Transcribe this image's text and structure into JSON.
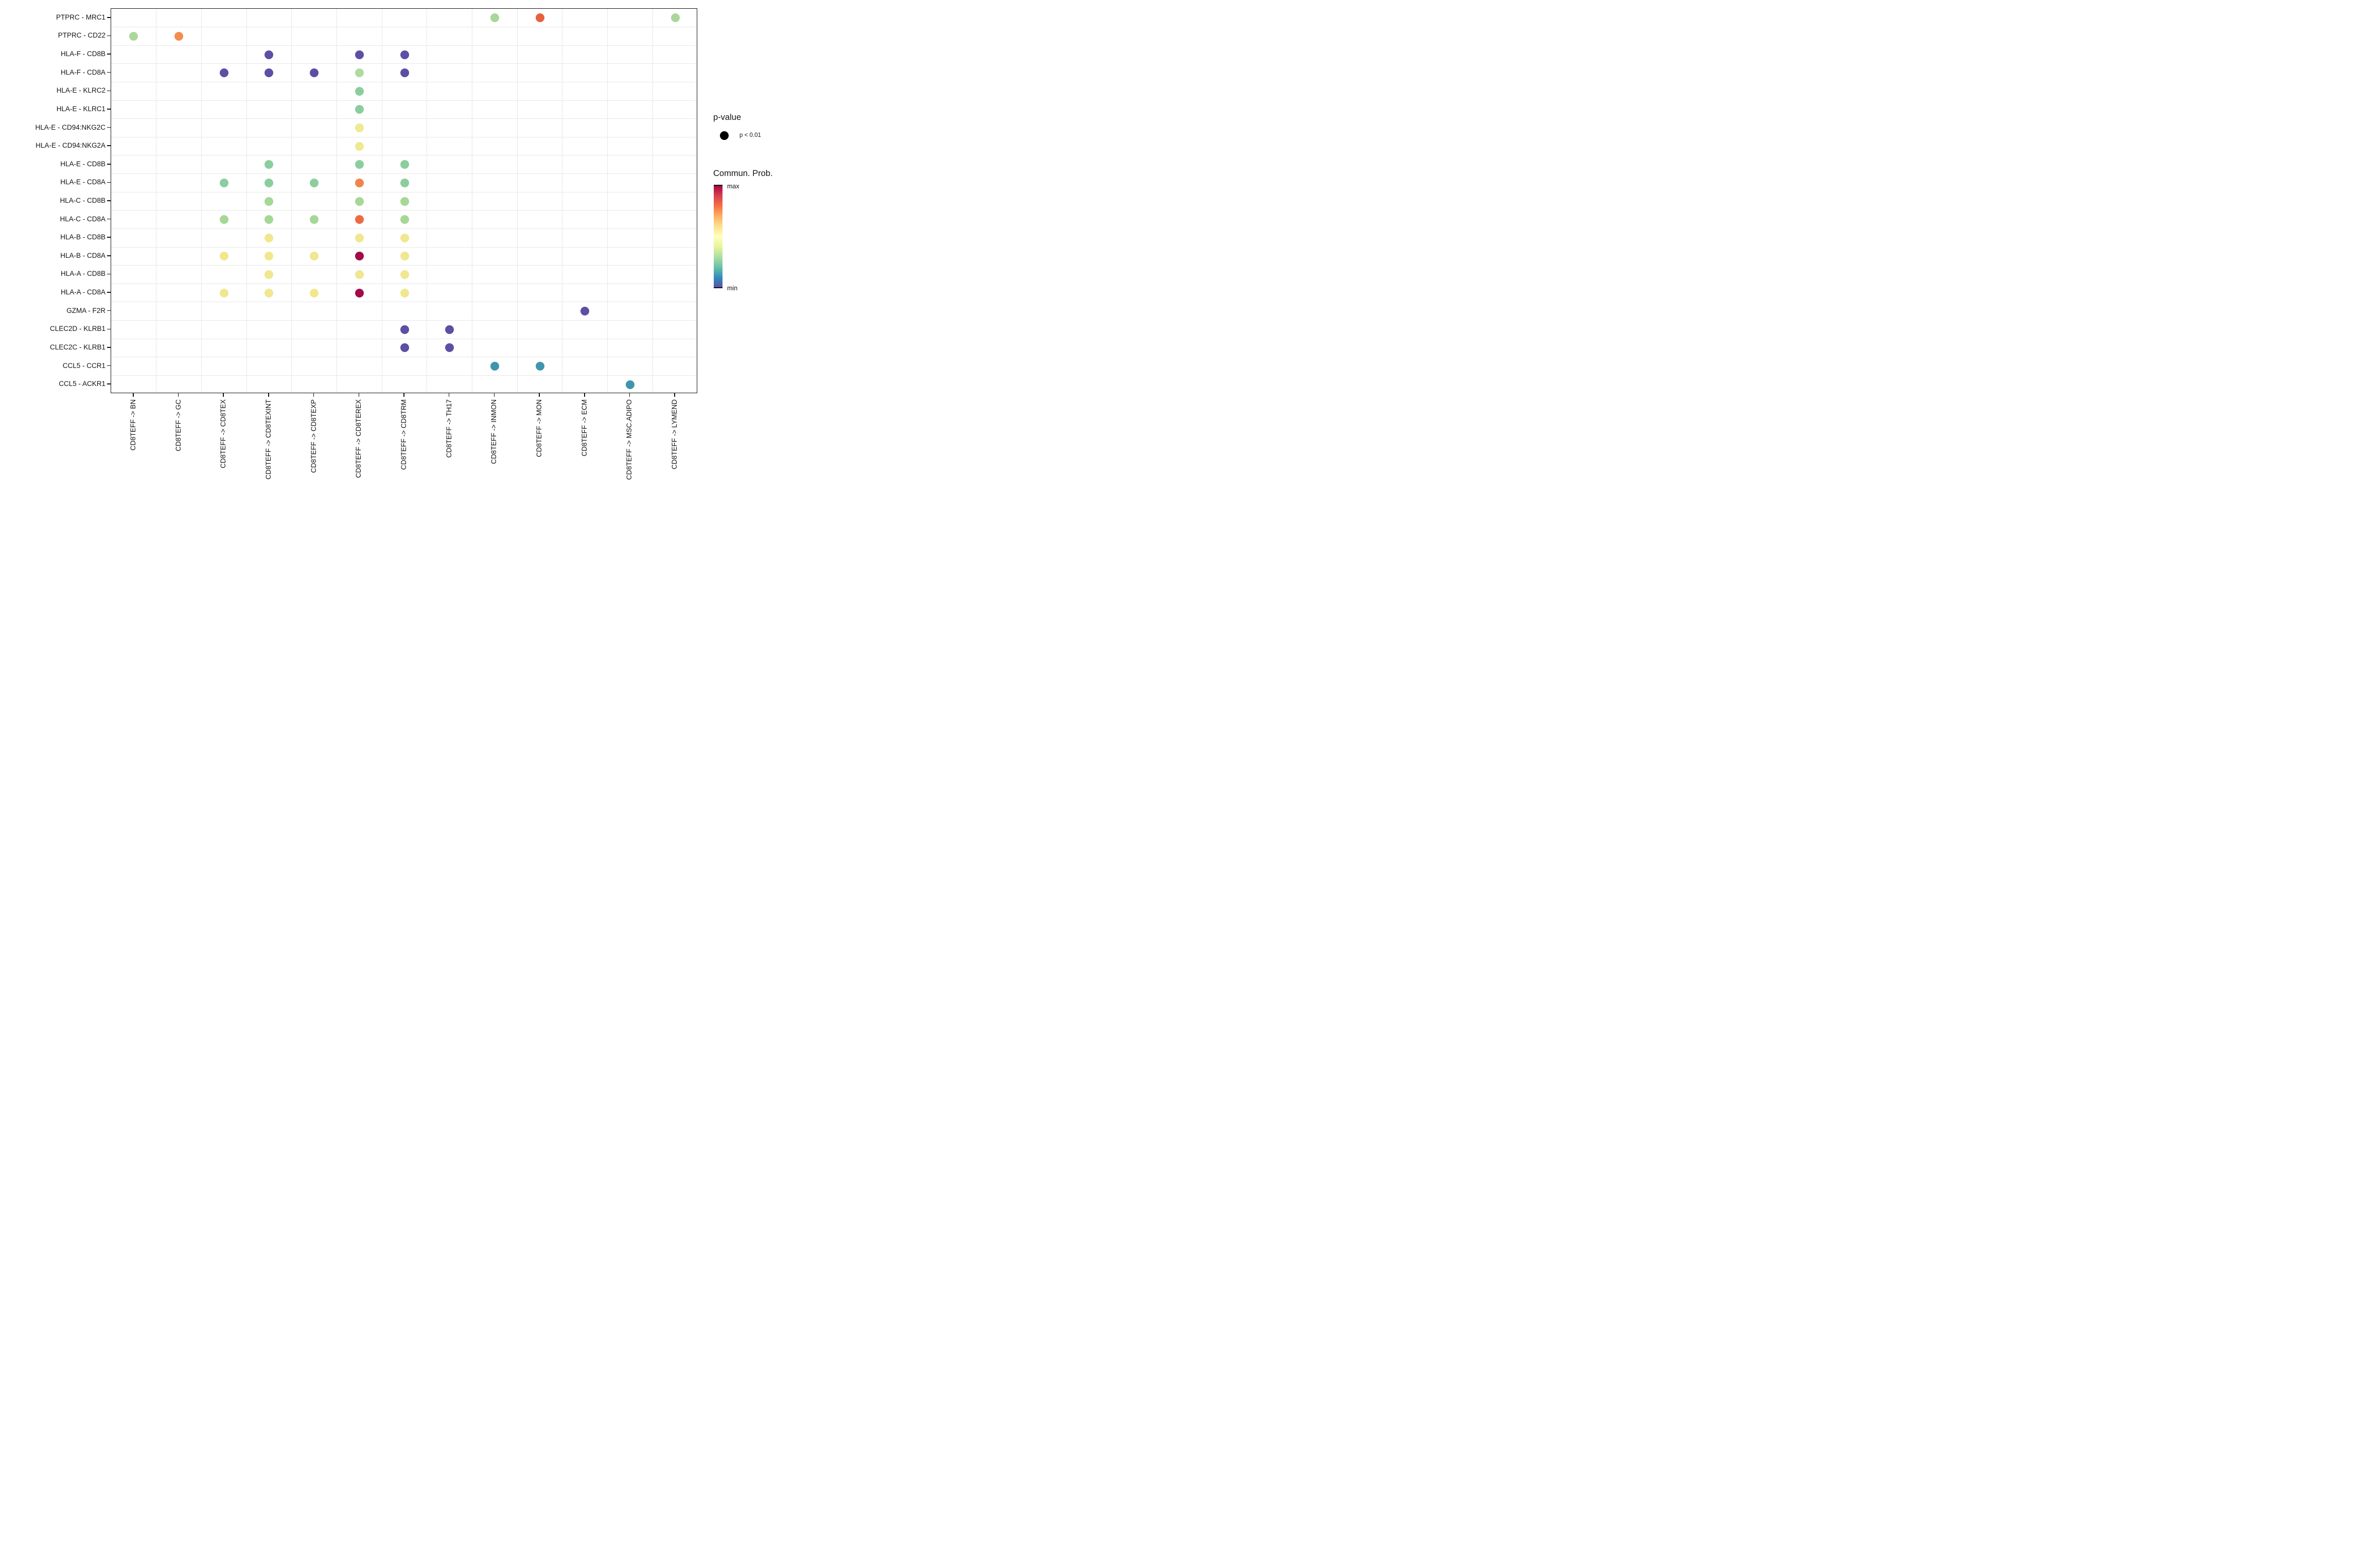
{
  "chart_data": {
    "type": "scatter",
    "title": "",
    "xlabel": "",
    "ylabel": "",
    "grid": "on",
    "legend_position": "right",
    "x_categories": [
      "CD8TEFF -> BN",
      "CD8TEFF -> GC",
      "CD8TEFF -> CD8TEX",
      "CD8TEFF -> CD8TEXINT",
      "CD8TEFF -> CD8TEXP",
      "CD8TEFF -> CD8TEREX",
      "CD8TEFF -> CD8TRM",
      "CD8TEFF -> TH17",
      "CD8TEFF -> INMON",
      "CD8TEFF -> MON",
      "CD8TEFF -> ECM",
      "CD8TEFF -> MSC.ADIPO",
      "CD8TEFF -> LYMEND"
    ],
    "y_categories": [
      "PTPRC - MRC1",
      "PTPRC - CD22",
      "HLA-F - CD8B",
      "HLA-F - CD8A",
      "HLA-E - KLRC2",
      "HLA-E - KLRC1",
      "HLA-E - CD94:NKG2C",
      "HLA-E - CD94:NKG2A",
      "HLA-E - CD8B",
      "HLA-E - CD8A",
      "HLA-C - CD8B",
      "HLA-C - CD8A",
      "HLA-B - CD8B",
      "HLA-B - CD8A",
      "HLA-A - CD8B",
      "HLA-A - CD8A",
      "GZMA - F2R",
      "CLEC2D - KLRB1",
      "CLEC2C - KLRB1",
      "CCL5 - CCR1",
      "CCL5 - ACKR1"
    ],
    "points": [
      {
        "y": "PTPRC - MRC1",
        "x": "CD8TEFF -> INMON",
        "color": "#a9d79a"
      },
      {
        "y": "PTPRC - MRC1",
        "x": "CD8TEFF -> MON",
        "color": "#e8613d"
      },
      {
        "y": "PTPRC - MRC1",
        "x": "CD8TEFF -> LYMEND",
        "color": "#a9d79a"
      },
      {
        "y": "PTPRC - CD22",
        "x": "CD8TEFF -> BN",
        "color": "#abd89a"
      },
      {
        "y": "PTPRC - CD22",
        "x": "CD8TEFF -> GC",
        "color": "#f48c4e"
      },
      {
        "y": "HLA-F - CD8B",
        "x": "CD8TEFF -> CD8TEXINT",
        "color": "#5b50a4"
      },
      {
        "y": "HLA-F - CD8B",
        "x": "CD8TEFF -> CD8TEREX",
        "color": "#5b50a4"
      },
      {
        "y": "HLA-F - CD8B",
        "x": "CD8TEFF -> CD8TRM",
        "color": "#5b50a4"
      },
      {
        "y": "HLA-F - CD8A",
        "x": "CD8TEFF -> CD8TEX",
        "color": "#5b50a4"
      },
      {
        "y": "HLA-F - CD8A",
        "x": "CD8TEFF -> CD8TEXINT",
        "color": "#5b50a4"
      },
      {
        "y": "HLA-F - CD8A",
        "x": "CD8TEFF -> CD8TEXP",
        "color": "#5b50a4"
      },
      {
        "y": "HLA-F - CD8A",
        "x": "CD8TEFF -> CD8TEREX",
        "color": "#aedc9e"
      },
      {
        "y": "HLA-F - CD8A",
        "x": "CD8TEFF -> CD8TRM",
        "color": "#5b50a4"
      },
      {
        "y": "HLA-E - KLRC2",
        "x": "CD8TEFF -> CD8TEREX",
        "color": "#8bce9e"
      },
      {
        "y": "HLA-E - KLRC1",
        "x": "CD8TEFF -> CD8TEREX",
        "color": "#8bce9e"
      },
      {
        "y": "HLA-E - CD94:NKG2C",
        "x": "CD8TEFF -> CD8TEREX",
        "color": "#efe992"
      },
      {
        "y": "HLA-E - CD94:NKG2A",
        "x": "CD8TEFF -> CD8TEREX",
        "color": "#efe992"
      },
      {
        "y": "HLA-E - CD8B",
        "x": "CD8TEFF -> CD8TEXINT",
        "color": "#8bce9e"
      },
      {
        "y": "HLA-E - CD8B",
        "x": "CD8TEFF -> CD8TEREX",
        "color": "#8bce9e"
      },
      {
        "y": "HLA-E - CD8B",
        "x": "CD8TEFF -> CD8TRM",
        "color": "#8bce9e"
      },
      {
        "y": "HLA-E - CD8A",
        "x": "CD8TEFF -> CD8TEX",
        "color": "#8bce9e"
      },
      {
        "y": "HLA-E - CD8A",
        "x": "CD8TEFF -> CD8TEXINT",
        "color": "#8bce9e"
      },
      {
        "y": "HLA-E - CD8A",
        "x": "CD8TEFF -> CD8TEXP",
        "color": "#8bce9e"
      },
      {
        "y": "HLA-E - CD8A",
        "x": "CD8TEFF -> CD8TEREX",
        "color": "#f1844b"
      },
      {
        "y": "HLA-E - CD8A",
        "x": "CD8TEFF -> CD8TRM",
        "color": "#8bce9e"
      },
      {
        "y": "HLA-C - CD8B",
        "x": "CD8TEFF -> CD8TEXINT",
        "color": "#a5d896"
      },
      {
        "y": "HLA-C - CD8B",
        "x": "CD8TEFF -> CD8TEREX",
        "color": "#a5d896"
      },
      {
        "y": "HLA-C - CD8B",
        "x": "CD8TEFF -> CD8TRM",
        "color": "#a5d896"
      },
      {
        "y": "HLA-C - CD8A",
        "x": "CD8TEFF -> CD8TEX",
        "color": "#a5d896"
      },
      {
        "y": "HLA-C - CD8A",
        "x": "CD8TEFF -> CD8TEXINT",
        "color": "#a5d896"
      },
      {
        "y": "HLA-C - CD8A",
        "x": "CD8TEFF -> CD8TEXP",
        "color": "#a5d896"
      },
      {
        "y": "HLA-C - CD8A",
        "x": "CD8TEFF -> CD8TEREX",
        "color": "#ee6a43"
      },
      {
        "y": "HLA-C - CD8A",
        "x": "CD8TEFF -> CD8TRM",
        "color": "#a5d896"
      },
      {
        "y": "HLA-B - CD8B",
        "x": "CD8TEFF -> CD8TEXINT",
        "color": "#f0e78f"
      },
      {
        "y": "HLA-B - CD8B",
        "x": "CD8TEFF -> CD8TEREX",
        "color": "#f0e78f"
      },
      {
        "y": "HLA-B - CD8B",
        "x": "CD8TEFF -> CD8TRM",
        "color": "#f0e78f"
      },
      {
        "y": "HLA-B - CD8A",
        "x": "CD8TEFF -> CD8TEX",
        "color": "#f0e78f"
      },
      {
        "y": "HLA-B - CD8A",
        "x": "CD8TEFF -> CD8TEXINT",
        "color": "#f0e78f"
      },
      {
        "y": "HLA-B - CD8A",
        "x": "CD8TEFF -> CD8TEXP",
        "color": "#f0e78f"
      },
      {
        "y": "HLA-B - CD8A",
        "x": "CD8TEFF -> CD8TEREX",
        "color": "#a30c48"
      },
      {
        "y": "HLA-B - CD8A",
        "x": "CD8TEFF -> CD8TRM",
        "color": "#f0e78f"
      },
      {
        "y": "HLA-A - CD8B",
        "x": "CD8TEFF -> CD8TEXINT",
        "color": "#f0e78f"
      },
      {
        "y": "HLA-A - CD8B",
        "x": "CD8TEFF -> CD8TEREX",
        "color": "#f0e78f"
      },
      {
        "y": "HLA-A - CD8B",
        "x": "CD8TEFF -> CD8TRM",
        "color": "#f0e78f"
      },
      {
        "y": "HLA-A - CD8A",
        "x": "CD8TEFF -> CD8TEX",
        "color": "#f0e78f"
      },
      {
        "y": "HLA-A - CD8A",
        "x": "CD8TEFF -> CD8TEXINT",
        "color": "#f0e78f"
      },
      {
        "y": "HLA-A - CD8A",
        "x": "CD8TEFF -> CD8TEXP",
        "color": "#f0e78f"
      },
      {
        "y": "HLA-A - CD8A",
        "x": "CD8TEFF -> CD8TEREX",
        "color": "#a30c48"
      },
      {
        "y": "HLA-A - CD8A",
        "x": "CD8TEFF -> CD8TRM",
        "color": "#f0e78f"
      },
      {
        "y": "GZMA - F2R",
        "x": "CD8TEFF -> ECM",
        "color": "#5b50a4"
      },
      {
        "y": "CLEC2D - KLRB1",
        "x": "CD8TEFF -> CD8TRM",
        "color": "#5b50a4"
      },
      {
        "y": "CLEC2D - KLRB1",
        "x": "CD8TEFF -> TH17",
        "color": "#5b50a4"
      },
      {
        "y": "CLEC2C - KLRB1",
        "x": "CD8TEFF -> CD8TRM",
        "color": "#5b50a4"
      },
      {
        "y": "CLEC2C - KLRB1",
        "x": "CD8TEFF -> TH17",
        "color": "#5b50a4"
      },
      {
        "y": "CCL5 - CCR1",
        "x": "CD8TEFF -> INMON",
        "color": "#4095ae"
      },
      {
        "y": "CCL5 - CCR1",
        "x": "CD8TEFF -> MON",
        "color": "#4095ae"
      },
      {
        "y": "CCL5 - ACKR1",
        "x": "CD8TEFF -> MSC.ADIPO",
        "color": "#4095ae"
      }
    ]
  },
  "legend": {
    "p_value": {
      "title": "p-value",
      "entry_label": "p < 0.01",
      "dot_color": "#000000"
    },
    "colorbar": {
      "title": "Commun. Prob.",
      "max_label": "max",
      "min_label": "min",
      "gradient_top_to_bottom": [
        "#9e0142",
        "#d53e4f",
        "#f46d43",
        "#fdae61",
        "#fee08b",
        "#ffffbf",
        "#e6f598",
        "#abdda4",
        "#66c2a5",
        "#3288bd",
        "#5e4fa2"
      ]
    }
  },
  "colors": {
    "panel_border": "#141414",
    "gridline": "#e7e7e7",
    "background": "#ffffff",
    "prob_min": "#5e4fa2",
    "prob_max": "#9e0142"
  }
}
